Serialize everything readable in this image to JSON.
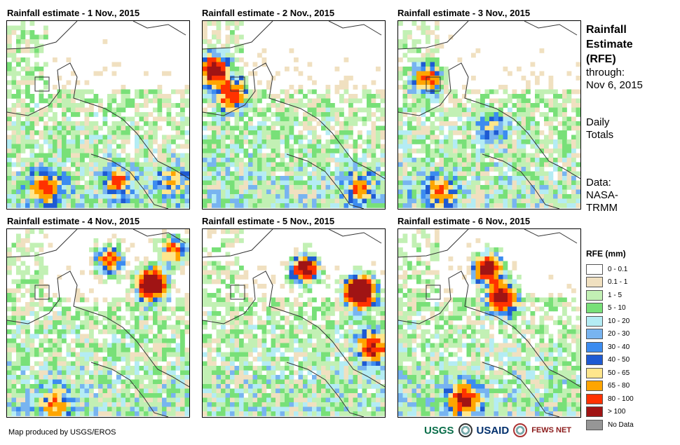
{
  "panels": [
    {
      "title": "Rainfall estimate - 1 Nov., 2015",
      "day": 1
    },
    {
      "title": "Rainfall estimate - 2 Nov., 2015",
      "day": 2
    },
    {
      "title": "Rainfall estimate - 3 Nov., 2015",
      "day": 3
    },
    {
      "title": "Rainfall estimate - 4 Nov., 2015",
      "day": 4
    },
    {
      "title": "Rainfall estimate - 5 Nov., 2015",
      "day": 5
    },
    {
      "title": "Rainfall estimate - 6 Nov., 2015",
      "day": 6
    }
  ],
  "info": {
    "title_line1": "Rainfall",
    "title_line2": "Estimate",
    "title_line3": "(RFE)",
    "through_label": "through:",
    "through_date": "Nov 6, 2015",
    "totals_line1": "Daily",
    "totals_line2": "Totals",
    "data_label": "Data:",
    "data_source_line1": "NASA-",
    "data_source_line2": "TRMM"
  },
  "legend": {
    "title": "RFE (mm)",
    "classes": [
      {
        "label": "0 - 0.1",
        "color": "#ffffff"
      },
      {
        "label": "0.1 - 1",
        "color": "#f0e0c0"
      },
      {
        "label": "1 - 5",
        "color": "#c2f0b4"
      },
      {
        "label": "5 - 10",
        "color": "#78e078"
      },
      {
        "label": "10 - 20",
        "color": "#b4ecf4"
      },
      {
        "label": "20 - 30",
        "color": "#78b4f0"
      },
      {
        "label": "30 - 40",
        "color": "#3c8cf0"
      },
      {
        "label": "40 - 50",
        "color": "#1e5ad2"
      },
      {
        "label": "50 - 65",
        "color": "#ffe68c"
      },
      {
        "label": "65 - 80",
        "color": "#ffa500"
      },
      {
        "label": "80 - 100",
        "color": "#ff3200"
      },
      {
        "label": "> 100",
        "color": "#a01414"
      },
      {
        "label": "No Data",
        "color": "#969696"
      }
    ]
  },
  "footer": {
    "credit": "Map produced by USGS/EROS",
    "logo_usgs": "USGS",
    "logo_usaid": "USAID",
    "logo_fewsnet": "FEWS NET"
  }
}
